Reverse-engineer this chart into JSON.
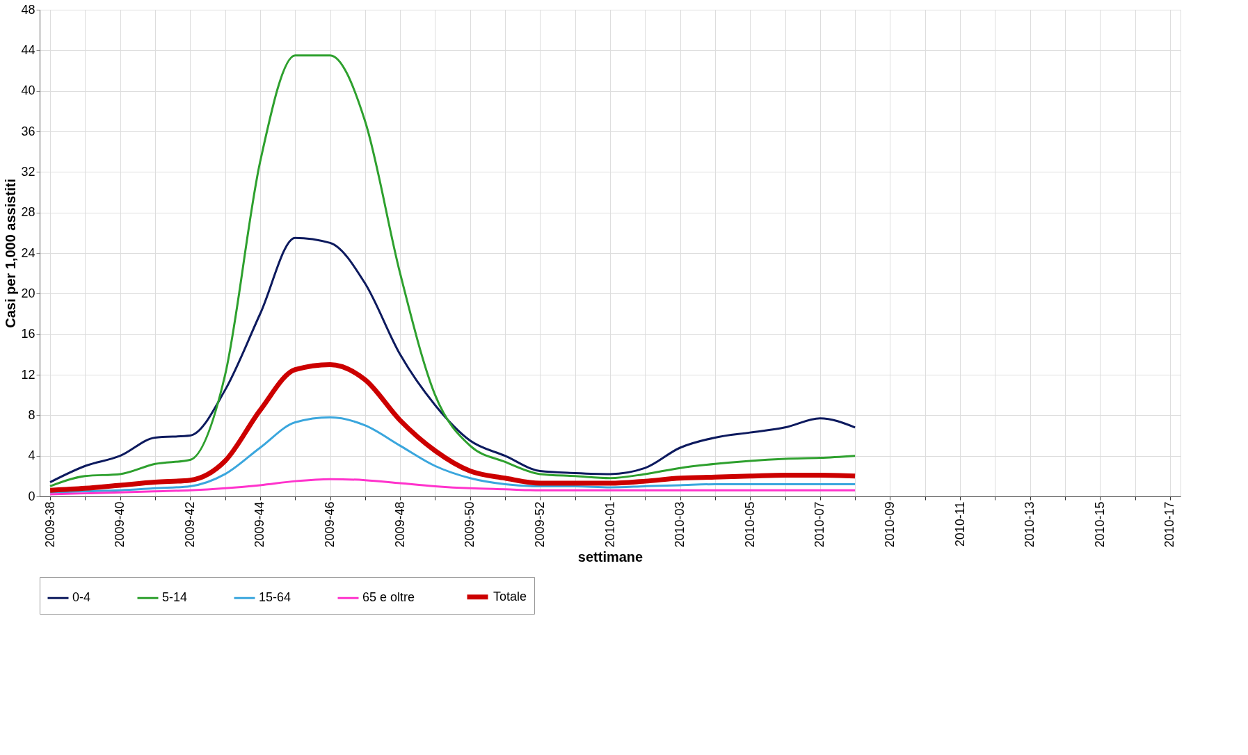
{
  "chart_data": {
    "type": "line",
    "xlabel": "settimane",
    "ylabel": "Casi per 1,000 assistiti",
    "categories": [
      "2009-38",
      null,
      "2009-40",
      null,
      "2009-42",
      null,
      "2009-44",
      null,
      "2009-46",
      null,
      "2009-48",
      null,
      "2009-50",
      null,
      "2009-52",
      null,
      "2010-01",
      null,
      "2010-03",
      null,
      "2010-05",
      null,
      "2010-07",
      null,
      "2010-09",
      null,
      "2010-11",
      null,
      "2010-13",
      null,
      "2010-15",
      null,
      "2010-17"
    ],
    "series": [
      {
        "name": "0-4",
        "color": "#0d1a5e",
        "values": [
          1.4,
          3.0,
          4.0,
          5.8,
          6.0,
          10.5,
          18,
          25.5,
          25,
          21,
          14,
          9,
          5.5,
          4,
          2.5,
          2.3,
          2.2,
          2.8,
          4.8,
          5.8,
          6.3,
          6.8,
          7.7,
          6.8,
          null,
          null,
          null,
          null,
          null,
          null,
          null,
          null,
          null
        ]
      },
      {
        "name": "5-14",
        "color": "#2ea02e",
        "values": [
          1.0,
          2.0,
          2.2,
          3.2,
          3.6,
          12,
          33,
          43.5,
          43.5,
          37,
          22,
          10,
          5,
          3.4,
          2.2,
          2.0,
          1.8,
          2.2,
          2.8,
          3.2,
          3.5,
          3.7,
          3.8,
          4.0,
          null,
          null,
          null,
          null,
          null,
          null,
          null,
          null,
          null
        ]
      },
      {
        "name": "15-64",
        "color": "#3aa6dd",
        "values": [
          0.4,
          0.5,
          0.6,
          0.8,
          1.0,
          2.2,
          4.8,
          7.3,
          7.8,
          7.0,
          5.0,
          3.0,
          1.8,
          1.2,
          1.0,
          1.0,
          0.9,
          1.0,
          1.1,
          1.2,
          1.2,
          1.2,
          1.2,
          1.2,
          null,
          null,
          null,
          null,
          null,
          null,
          null,
          null,
          null
        ]
      },
      {
        "name": "65 e oltre",
        "color": "#ff33cc",
        "values": [
          0.2,
          0.3,
          0.4,
          0.5,
          0.6,
          0.8,
          1.1,
          1.5,
          1.7,
          1.6,
          1.3,
          1.0,
          0.8,
          0.7,
          0.6,
          0.6,
          0.6,
          0.6,
          0.6,
          0.6,
          0.6,
          0.6,
          0.6,
          0.6,
          null,
          null,
          null,
          null,
          null,
          null,
          null,
          null,
          null
        ]
      },
      {
        "name": "Totale",
        "color": "#cc0000",
        "values": [
          0.6,
          0.8,
          1.1,
          1.4,
          1.6,
          3.5,
          8.5,
          12.5,
          13,
          11.5,
          7.5,
          4.5,
          2.5,
          1.8,
          1.3,
          1.3,
          1.3,
          1.5,
          1.8,
          1.9,
          2.0,
          2.1,
          2.1,
          2.0,
          null,
          null,
          null,
          null,
          null,
          null,
          null,
          null,
          null
        ]
      }
    ],
    "ylim": [
      0,
      48
    ],
    "yticks": [
      0,
      4,
      8,
      12,
      16,
      20,
      24,
      28,
      32,
      36,
      40,
      44,
      48
    ],
    "grid": true,
    "legend": "bottom",
    "marker": "none",
    "line_style": "solid"
  }
}
